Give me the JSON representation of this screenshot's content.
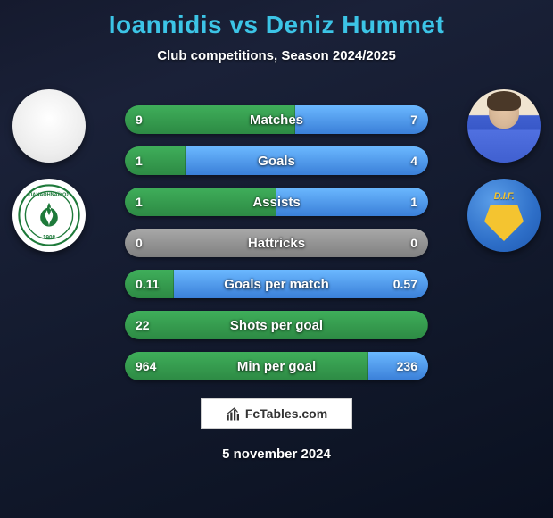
{
  "title": "Ioannidis vs Deniz Hummet",
  "subtitle": "Club competitions, Season 2024/2025",
  "date": "5 november 2024",
  "brand": "FcTables.com",
  "colors": {
    "p1_green_a": "#3fae5a",
    "p1_green_b": "#2d8a44",
    "p2_blue_a": "#6bb8ff",
    "p2_blue_b": "#3a7fd8",
    "grey_a": "#a8a8a8",
    "grey_b": "#808080",
    "title": "#3cc4e6"
  },
  "player1": {
    "name": "Ioannidis",
    "club": "Panathinaikos"
  },
  "player2": {
    "name": "Deniz Hummet",
    "club": "Djurgarden"
  },
  "stats": [
    {
      "label": "Matches",
      "v1": "9",
      "v2": "7",
      "left_pct": 56.25,
      "p1_color": "green",
      "p2_color": "blue"
    },
    {
      "label": "Goals",
      "v1": "1",
      "v2": "4",
      "left_pct": 20.0,
      "p1_color": "green",
      "p2_color": "blue"
    },
    {
      "label": "Assists",
      "v1": "1",
      "v2": "1",
      "left_pct": 50.0,
      "p1_color": "green",
      "p2_color": "blue"
    },
    {
      "label": "Hattricks",
      "v1": "0",
      "v2": "0",
      "left_pct": 50.0,
      "p1_color": "grey",
      "p2_color": "grey"
    },
    {
      "label": "Goals per match",
      "v1": "0.11",
      "v2": "0.57",
      "left_pct": 16.2,
      "p1_color": "green",
      "p2_color": "blue"
    },
    {
      "label": "Shots per goal",
      "v1": "22",
      "v2": "",
      "left_pct": 100.0,
      "p1_color": "green",
      "p2_color": "grey"
    },
    {
      "label": "Min per goal",
      "v1": "964",
      "v2": "236",
      "left_pct": 80.3,
      "p1_color": "green",
      "p2_color": "blue"
    }
  ]
}
